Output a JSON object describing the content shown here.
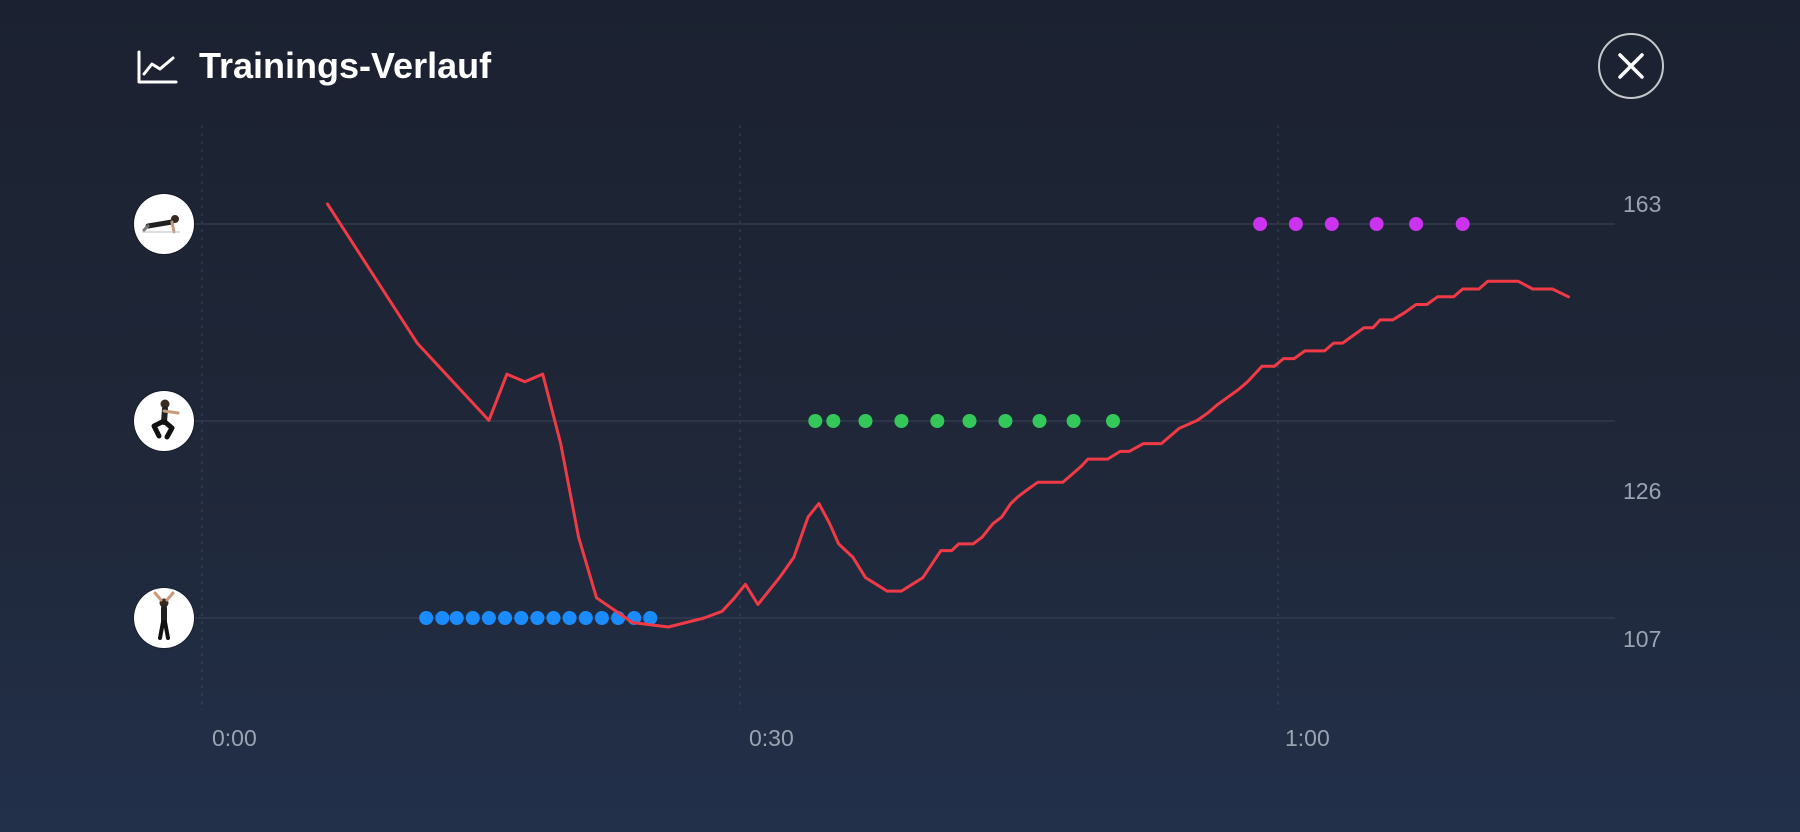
{
  "header": {
    "title": "Trainings-Verlauf",
    "title_icon": "line-chart-icon",
    "close_icon": "close-icon"
  },
  "chart_data": {
    "type": "line",
    "title": "Trainings-Verlauf",
    "x_tick_labels": [
      "0:00",
      "0:30",
      "1:00"
    ],
    "x_range": [
      "0:00",
      "1:14"
    ],
    "y_tick_labels": [
      "163",
      "126",
      "107"
    ],
    "y_axis_side": "right",
    "grid": true,
    "heart_rate": {
      "color": "#f03a45",
      "x_sec": [
        7,
        12,
        16,
        17,
        18,
        19,
        20,
        21,
        22,
        24,
        26,
        27,
        28,
        29,
        29.7,
        30.3,
        31,
        31.6,
        32.2,
        33,
        33.8,
        34.4,
        35,
        35.5,
        36.3,
        37,
        37.6,
        38.2,
        39,
        39.6,
        40.2,
        40.7,
        41.2,
        41.8,
        42.2,
        43,
        43.5,
        44.1,
        44.6,
        45.1,
        45.5,
        46,
        46.6,
        47.2,
        48,
        48.5,
        49,
        49.4,
        50.5,
        51.2,
        51.7,
        52.5,
        53.5,
        54,
        54.5,
        55.5,
        56.1,
        56.6,
        57.2,
        57.8,
        58.3,
        58.7,
        59.1,
        59.8,
        60.3,
        60.9,
        61.5,
        62,
        62.6,
        63.1,
        63.6,
        64.2,
        64.8,
        65.3,
        65.7,
        66.4,
        67.1,
        67.7,
        68.3,
        68.9,
        69.4,
        69.8,
        70.3,
        70.7,
        71.2,
        71.7,
        72.2,
        72.6,
        73.4,
        74.2,
        74.7,
        75.3,
        76.2
      ],
      "bpm": [
        163,
        145,
        135,
        141,
        140,
        141,
        132,
        119,
        110,
        106,
        105,
        106,
        107,
        108,
        110,
        112,
        109,
        111,
        113,
        116,
        122,
        124,
        121,
        118,
        116,
        113,
        112,
        111,
        111,
        112,
        113,
        115,
        117,
        117,
        118,
        118,
        119,
        121,
        122,
        124,
        125,
        126,
        127,
        127,
        127,
        128,
        129,
        130,
        130,
        131,
        131,
        132,
        132,
        133,
        134,
        135,
        136,
        137,
        138,
        139,
        140,
        141,
        142,
        142,
        143,
        143,
        144,
        144,
        144,
        145,
        145,
        146,
        147,
        147,
        148,
        148,
        149,
        150,
        150,
        151,
        151,
        151,
        152,
        152,
        152,
        153,
        153,
        153,
        153,
        152,
        152,
        152,
        151
      ]
    },
    "phases": [
      {
        "exercise": "jumping-jacks",
        "color": "#1a8cff",
        "x_sec": [
          12.5,
          13.4,
          14.2,
          15.1,
          16.0,
          16.9,
          17.8,
          18.7,
          19.6,
          20.5,
          21.4,
          22.3,
          23.2,
          24.1,
          25.0
        ]
      },
      {
        "exercise": "squat",
        "color": "#34c759",
        "x_sec": [
          34.2,
          35.2,
          37.0,
          39.0,
          41.0,
          42.8,
          44.8,
          46.7,
          48.6,
          50.8
        ]
      },
      {
        "exercise": "push-up",
        "color": "#cc33ee",
        "x_sec": [
          59.0,
          61.0,
          63.0,
          65.5,
          67.7,
          70.3
        ]
      }
    ],
    "exercise_rows": [
      "push-up-icon",
      "squat-icon",
      "jumping-jacks-icon"
    ]
  }
}
